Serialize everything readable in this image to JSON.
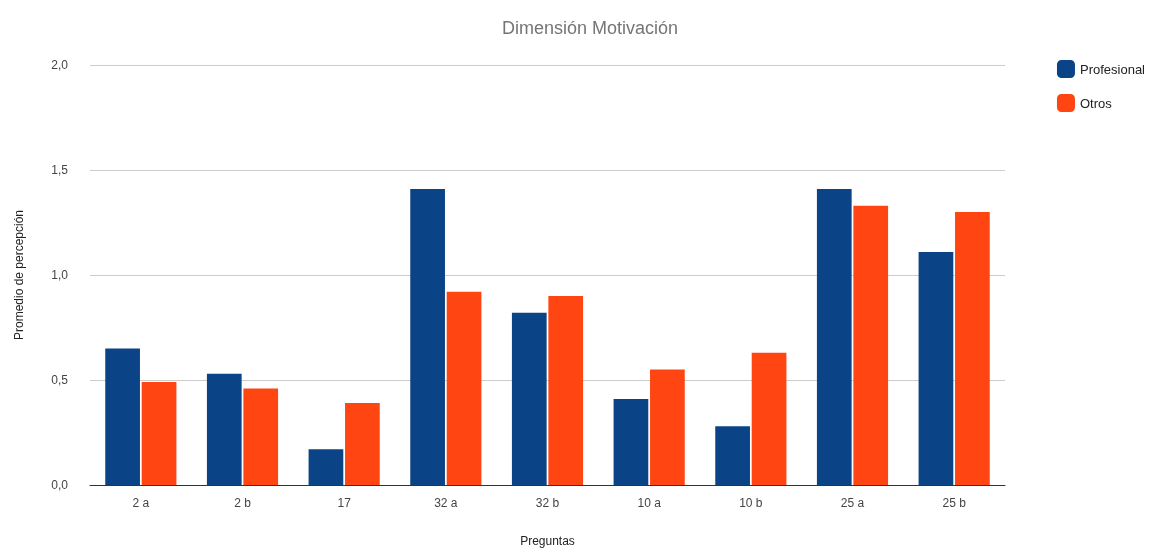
{
  "chart_data": {
    "type": "bar",
    "title": "Dimensión Motivación",
    "xlabel": "Preguntas",
    "ylabel": "Promedio de percepción",
    "categories": [
      "2 a",
      "2 b",
      "17",
      "32 a",
      "32 b",
      "10 a",
      "10 b",
      "25 a",
      "25 b"
    ],
    "series": [
      {
        "name": "Profesional",
        "color": "#0b4486",
        "values": [
          0.65,
          0.53,
          0.17,
          1.41,
          0.82,
          0.41,
          0.28,
          1.41,
          1.11
        ]
      },
      {
        "name": "Otros",
        "color": "#ff4612",
        "values": [
          0.49,
          0.46,
          0.39,
          0.92,
          0.9,
          0.55,
          0.63,
          1.33,
          1.3
        ]
      }
    ],
    "ylim": [
      0,
      2
    ],
    "yticks": [
      {
        "value": 0,
        "label": "0,0"
      },
      {
        "value": 0.5,
        "label": "0,5"
      },
      {
        "value": 1,
        "label": "1,0"
      },
      {
        "value": 1.5,
        "label": "1,5"
      },
      {
        "value": 2,
        "label": "2,0"
      }
    ],
    "grid": "y",
    "legend": "top right"
  }
}
